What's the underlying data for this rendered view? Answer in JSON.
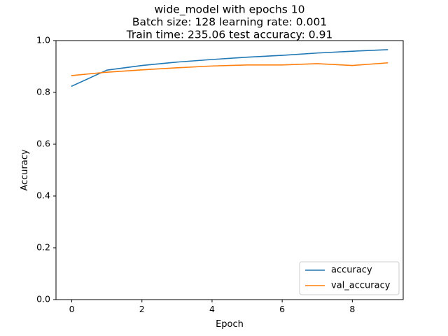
{
  "chart_data": {
    "type": "line",
    "title_lines": [
      "wide_model with epochs 10",
      "Batch size: 128  learning rate: 0.001",
      "Train time: 235.06  test accuracy: 0.91"
    ],
    "xlabel": "Epoch",
    "ylabel": "Accuracy",
    "xlim": [
      -0.45,
      9.45
    ],
    "ylim": [
      0.0,
      1.0
    ],
    "xticks": [
      0,
      2,
      4,
      6,
      8
    ],
    "yticks": [
      0.0,
      0.2,
      0.4,
      0.6,
      0.8,
      1.0
    ],
    "xtick_labels": [
      "0",
      "2",
      "4",
      "6",
      "8"
    ],
    "ytick_labels": [
      "0.0",
      "0.2",
      "0.4",
      "0.6",
      "0.8",
      "1.0"
    ],
    "x": [
      0,
      1,
      2,
      3,
      4,
      5,
      6,
      7,
      8,
      9
    ],
    "series": [
      {
        "name": "accuracy",
        "color": "#1f77b4",
        "values": [
          0.824,
          0.886,
          0.904,
          0.917,
          0.927,
          0.936,
          0.943,
          0.952,
          0.959,
          0.965
        ]
      },
      {
        "name": "val_accuracy",
        "color": "#ff7f0e",
        "values": [
          0.865,
          0.878,
          0.887,
          0.895,
          0.902,
          0.906,
          0.906,
          0.911,
          0.904,
          0.914
        ]
      }
    ],
    "legend": {
      "position": "lower-right"
    },
    "grid": false
  }
}
